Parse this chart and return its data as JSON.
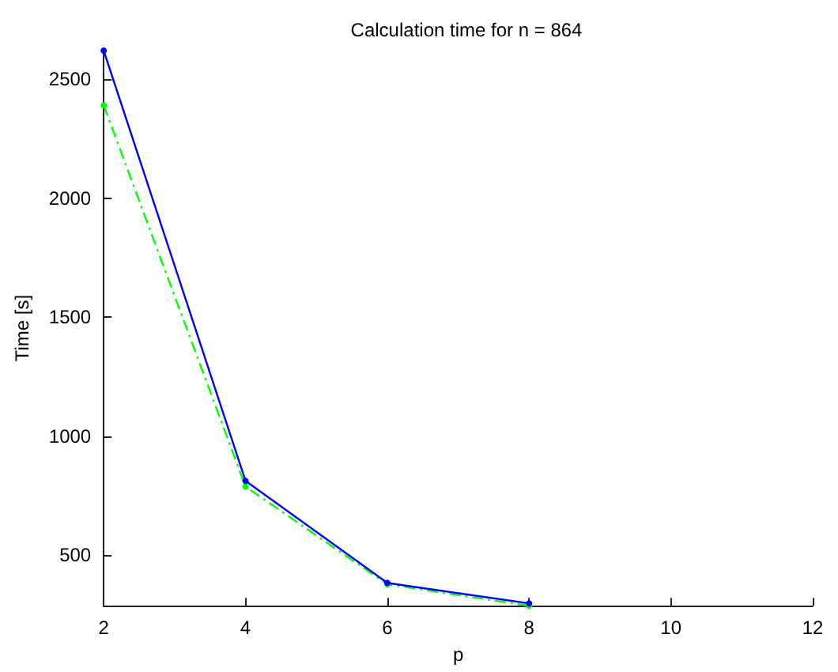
{
  "chart_data": {
    "type": "line",
    "title": "Calculation time for n = 864",
    "xlabel": "p",
    "ylabel": "Time [s]",
    "x": [
      2,
      4,
      6,
      8
    ],
    "series": [
      {
        "color": "#0000ff",
        "values": [
          2620,
          812,
          383,
          297
        ],
        "line_style": "solid"
      },
      {
        "color": "#00ff00",
        "values": [
          2390,
          788,
          377,
          287
        ],
        "line_style": "dashed"
      }
    ],
    "xlim": [
      2,
      12
    ],
    "xticks": [
      2,
      4,
      6,
      8,
      10,
      12
    ],
    "ylim": [
      287,
      2620
    ],
    "yticks": [
      500,
      1000,
      1500,
      2000,
      2500
    ],
    "grid": false,
    "legend": false,
    "marker": "circle"
  }
}
